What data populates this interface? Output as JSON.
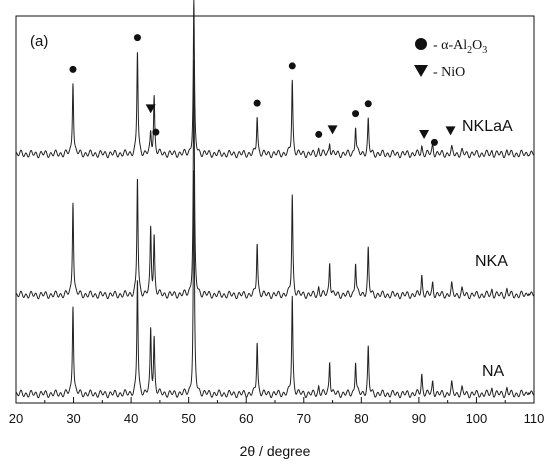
{
  "chart_data": {
    "type": "line",
    "panel_label": "(a)",
    "xlabel": "2θ / degree",
    "ylabel": "",
    "xlim": [
      20,
      110
    ],
    "x_ticks": [
      20,
      30,
      40,
      50,
      60,
      70,
      80,
      90,
      100,
      110
    ],
    "y_ticks": [],
    "grid": false,
    "legend_position": "top-right",
    "legend": [
      {
        "marker": "circle",
        "label_prefix": "- α-Al",
        "sub1": "2",
        "mid": "O",
        "sub2": "3"
      },
      {
        "marker": "triangle-down",
        "label": "- NiO"
      }
    ],
    "series": [
      {
        "name": "NA",
        "color": "#222222",
        "peaks": [
          [
            29.9,
            0.38
          ],
          [
            41.1,
            0.48
          ],
          [
            43.4,
            0.26
          ],
          [
            44.0,
            0.23
          ],
          [
            50.9,
            0.92
          ],
          [
            61.9,
            0.22
          ],
          [
            68.0,
            0.41
          ],
          [
            72.6,
            0.03
          ],
          [
            74.5,
            0.14
          ],
          [
            79.0,
            0.14
          ],
          [
            81.2,
            0.19
          ],
          [
            90.5,
            0.08
          ],
          [
            92.4,
            0.05
          ],
          [
            95.7,
            0.04
          ],
          [
            97.5,
            0.02
          ],
          [
            102.7,
            0.02
          ],
          [
            105.3,
            0.02
          ],
          [
            109.1,
            0.02
          ]
        ]
      },
      {
        "name": "NKA",
        "color": "#222222",
        "peaks": [
          [
            29.9,
            0.4
          ],
          [
            41.1,
            0.49
          ],
          [
            43.4,
            0.27
          ],
          [
            44.0,
            0.24
          ],
          [
            50.9,
            0.97
          ],
          [
            61.9,
            0.22
          ],
          [
            68.0,
            0.42
          ],
          [
            72.6,
            0.03
          ],
          [
            74.5,
            0.14
          ],
          [
            79.0,
            0.14
          ],
          [
            81.2,
            0.19
          ],
          [
            90.5,
            0.08
          ],
          [
            92.4,
            0.05
          ],
          [
            95.7,
            0.04
          ],
          [
            97.5,
            0.02
          ],
          [
            102.7,
            0.02
          ],
          [
            105.3,
            0.02
          ],
          [
            109.1,
            0.02
          ]
        ]
      },
      {
        "name": "NKLaA",
        "color": "#222222",
        "peaks": [
          [
            29.9,
            0.31
          ],
          [
            41.1,
            0.43
          ],
          [
            43.4,
            0.08
          ],
          [
            44.0,
            0.24
          ],
          [
            50.9,
            0.63
          ],
          [
            61.9,
            0.16
          ],
          [
            68.0,
            0.31
          ],
          [
            72.6,
            0.02
          ],
          [
            74.5,
            0.05
          ],
          [
            79.0,
            0.12
          ],
          [
            81.2,
            0.14
          ],
          [
            90.5,
            0.03
          ],
          [
            92.4,
            0.04
          ],
          [
            95.7,
            0.02
          ],
          [
            97.5,
            0.01
          ],
          [
            102.7,
            0.01
          ],
          [
            105.3,
            0.01
          ],
          [
            109.1,
            0.01
          ]
        ]
      }
    ],
    "markers": [
      {
        "type": "circle",
        "x": 29.9
      },
      {
        "type": "circle",
        "x": 41.1
      },
      {
        "type": "triangle-down",
        "x": 43.4
      },
      {
        "type": "circle",
        "x": 44.3
      },
      {
        "type": "circle",
        "x": 50.9
      },
      {
        "type": "triangle-down",
        "x": 50.9
      },
      {
        "type": "circle",
        "x": 61.9
      },
      {
        "type": "circle",
        "x": 68.0
      },
      {
        "type": "circle",
        "x": 72.6
      },
      {
        "type": "triangle-down",
        "x": 75.0
      },
      {
        "type": "circle",
        "x": 79.0
      },
      {
        "type": "circle",
        "x": 81.2
      },
      {
        "type": "triangle-down",
        "x": 90.9
      },
      {
        "type": "circle",
        "x": 92.7
      },
      {
        "type": "triangle-down",
        "x": 95.5
      }
    ]
  }
}
